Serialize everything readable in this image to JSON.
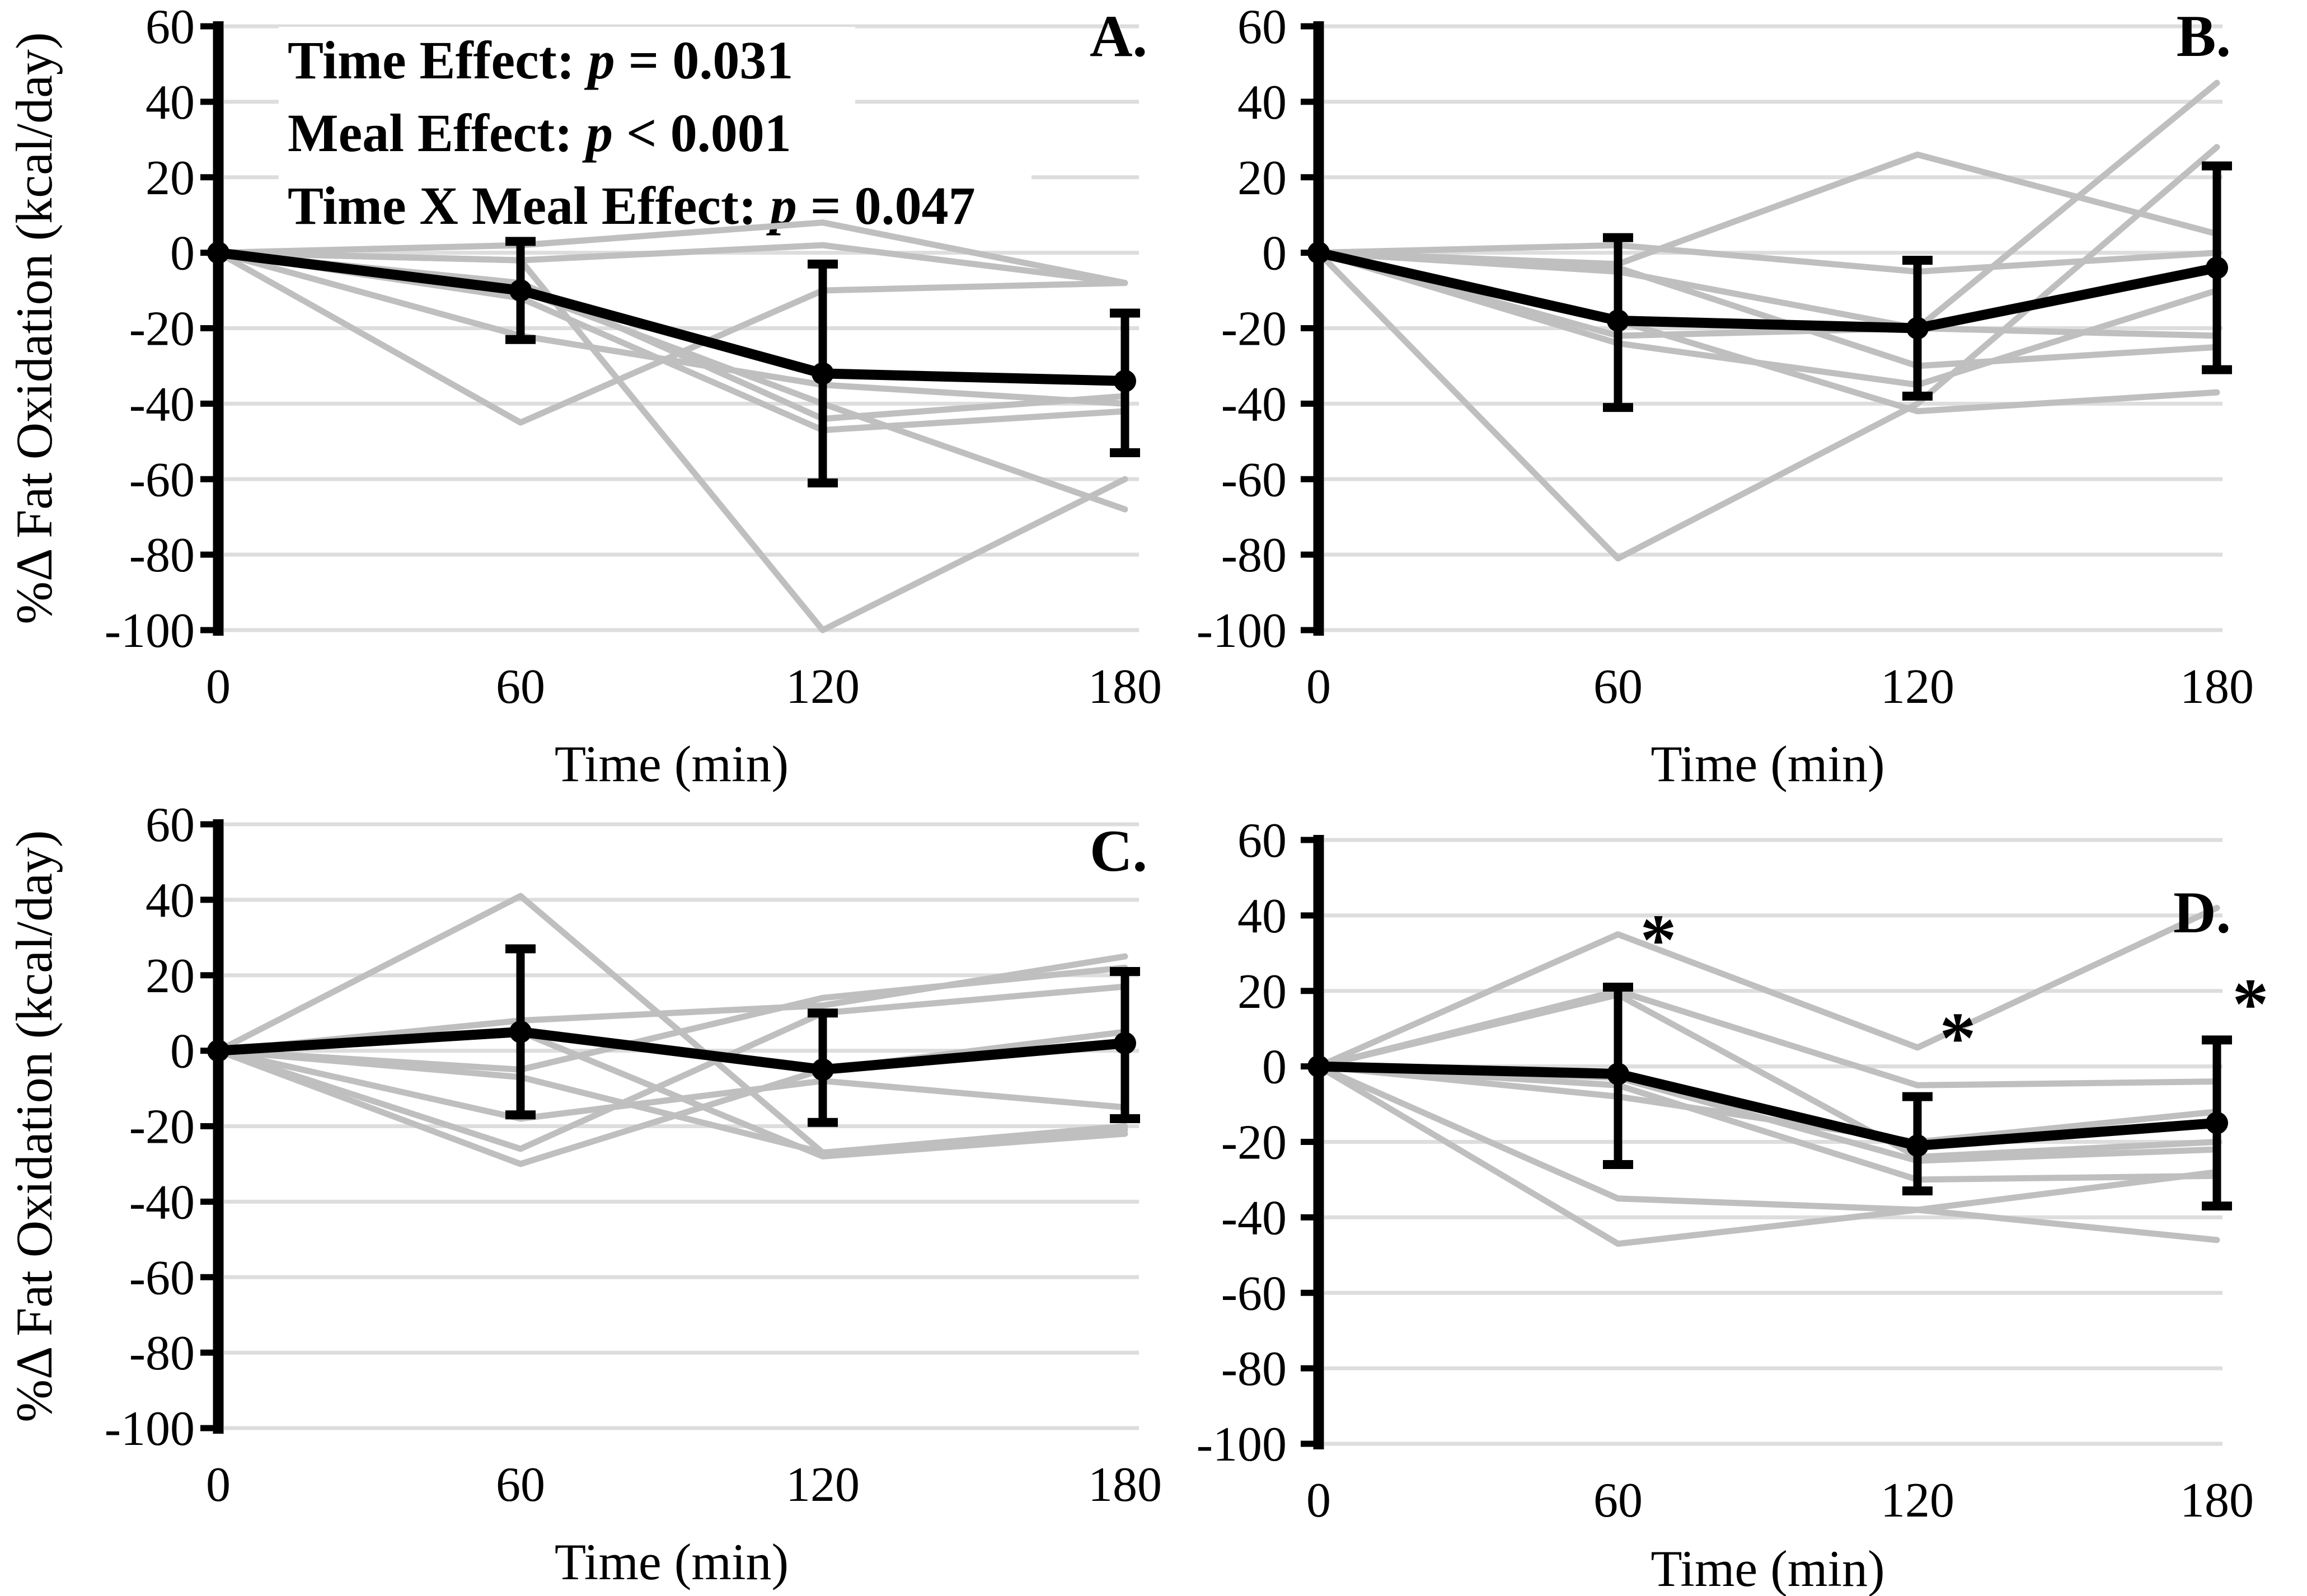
{
  "colors": {
    "background": "#FFFFFF",
    "individual_line": "#BFBFBF",
    "mean_line": "#000000",
    "gridline": "#DDDDDD",
    "text": "#000000"
  },
  "figure": {
    "xlabel": "Time (min)",
    "ylabel": "%Δ Fat Oxidation (kcal/day)"
  },
  "chart_data": [
    {
      "type": "line",
      "panel_label": "A.",
      "xlabel": "Time (min)",
      "ylabel": "%Δ Fat Oxidation (kcal/day)",
      "x": [
        0,
        60,
        120,
        180
      ],
      "ylim": [
        -100,
        60
      ],
      "yticks": [
        60,
        40,
        20,
        0,
        -20,
        -40,
        -60,
        -80,
        -100
      ],
      "grid": true,
      "annotations": [
        {
          "pre": "Time Effect: ",
          "italic": "p",
          "post": " = 0.031"
        },
        {
          "pre": "Meal Effect: ",
          "italic": "p",
          "post": " < 0.001"
        },
        {
          "pre": "Time X Meal Effect: ",
          "italic": "p",
          "post": " = 0.047"
        }
      ],
      "mean_series": {
        "name": "Mean",
        "values": [
          0,
          -10,
          -32,
          -34
        ],
        "error_upper": [
          null,
          3,
          -3,
          -16
        ],
        "error_lower": [
          null,
          -23,
          -61,
          -53
        ]
      },
      "individual_series": [
        [
          0,
          2,
          8,
          -8
        ],
        [
          0,
          -2,
          2,
          -8
        ],
        [
          0,
          -45,
          -10,
          -8
        ],
        [
          0,
          -8,
          -44,
          -38
        ],
        [
          0,
          -12,
          -47,
          -42
        ],
        [
          0,
          -22,
          -35,
          -40
        ],
        [
          0,
          -2,
          -100,
          -60
        ],
        [
          0,
          -10,
          -40,
          -68
        ]
      ],
      "asterisks": []
    },
    {
      "type": "line",
      "panel_label": "B.",
      "xlabel": "Time (min)",
      "ylabel": "",
      "x": [
        0,
        60,
        120,
        180
      ],
      "ylim": [
        -100,
        60
      ],
      "yticks": [
        60,
        40,
        20,
        0,
        -20,
        -40,
        -60,
        -80,
        -100
      ],
      "grid": true,
      "annotations": [],
      "mean_series": {
        "name": "Mean",
        "values": [
          0,
          -18,
          -20,
          -4
        ],
        "error_upper": [
          null,
          4,
          -2,
          23
        ],
        "error_lower": [
          null,
          -41,
          -38,
          -31
        ]
      },
      "individual_series": [
        [
          0,
          2,
          -5,
          0
        ],
        [
          0,
          -3,
          26,
          5
        ],
        [
          0,
          -22,
          -20,
          45
        ],
        [
          0,
          -81,
          -40,
          28
        ],
        [
          0,
          -24,
          -35,
          -10
        ],
        [
          0,
          -5,
          -20,
          -22
        ],
        [
          0,
          -18,
          -42,
          -37
        ],
        [
          0,
          -4,
          -30,
          -25
        ]
      ],
      "asterisks": []
    },
    {
      "type": "line",
      "panel_label": "C.",
      "xlabel": "Time (min)",
      "ylabel": "%Δ Fat Oxidation (kcal/day)",
      "x": [
        0,
        60,
        120,
        180
      ],
      "ylim": [
        -100,
        60
      ],
      "yticks": [
        60,
        40,
        20,
        0,
        -20,
        -40,
        -60,
        -80,
        -100
      ],
      "grid": true,
      "annotations": [],
      "mean_series": {
        "name": "Mean",
        "values": [
          0,
          5,
          -5,
          2
        ],
        "error_upper": [
          null,
          27,
          10,
          21
        ],
        "error_lower": [
          null,
          -17,
          -19,
          -18
        ]
      },
      "individual_series": [
        [
          0,
          41,
          -27,
          -21
        ],
        [
          0,
          8,
          12,
          25
        ],
        [
          0,
          -5,
          14,
          22
        ],
        [
          0,
          -26,
          10,
          17
        ],
        [
          0,
          -30,
          -5,
          5
        ],
        [
          0,
          5,
          -28,
          -22
        ],
        [
          0,
          -18,
          -8,
          -15
        ],
        [
          0,
          -7,
          -27,
          -20
        ]
      ],
      "asterisks": []
    },
    {
      "type": "line",
      "panel_label": "D.",
      "xlabel": "Time (min)",
      "ylabel": "",
      "x": [
        0,
        60,
        120,
        180
      ],
      "ylim": [
        -100,
        60
      ],
      "yticks": [
        60,
        40,
        20,
        0,
        -20,
        -40,
        -60,
        -80,
        -100
      ],
      "grid": true,
      "annotations": [],
      "mean_series": {
        "name": "Mean",
        "values": [
          0,
          -2,
          -21,
          -15
        ],
        "error_upper": [
          null,
          21,
          -8,
          7
        ],
        "error_lower": [
          null,
          -26,
          -33,
          -37
        ]
      },
      "individual_series": [
        [
          0,
          35,
          5,
          42
        ],
        [
          0,
          20,
          -5,
          -4
        ],
        [
          0,
          19,
          -24,
          -20
        ],
        [
          0,
          -3,
          -25,
          -22
        ],
        [
          0,
          -8,
          -20,
          -12
        ],
        [
          0,
          -35,
          -38,
          -28
        ],
        [
          0,
          -47,
          -38,
          -46
        ],
        [
          0,
          -5,
          -30,
          -29
        ]
      ],
      "asterisks": [
        {
          "x": 60,
          "value": 36
        },
        {
          "x": 120,
          "value": 10
        },
        {
          "x": 180,
          "value": 19
        }
      ]
    }
  ]
}
